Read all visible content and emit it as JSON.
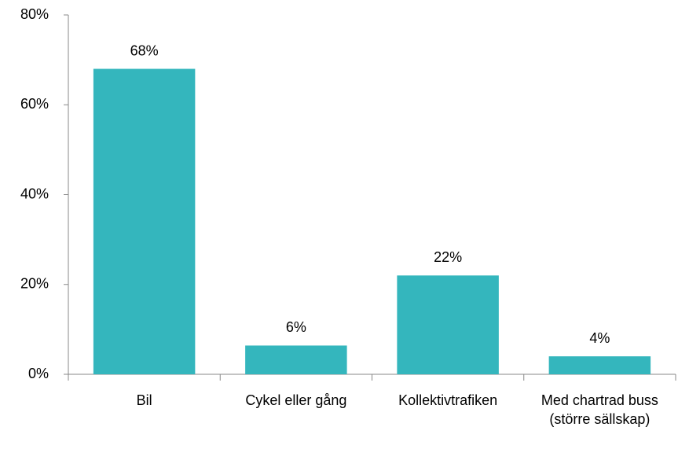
{
  "chart_data": {
    "type": "bar",
    "categories": [
      "Bil",
      "Cykel eller gång",
      "Kollektivtrafiken",
      "Med chartrad buss (större sällskap)"
    ],
    "values": [
      68,
      6.4,
      22,
      4
    ],
    "value_labels": [
      "68%",
      "6%",
      "22%",
      "4%"
    ],
    "color": "#34b6bd",
    "ylim": [
      0,
      80
    ],
    "yticks": [
      {
        "value": 0,
        "label": "0%"
      },
      {
        "value": 20,
        "label": "20%"
      },
      {
        "value": 40,
        "label": "40%"
      },
      {
        "value": 60,
        "label": "60%"
      },
      {
        "value": 80,
        "label": "80%"
      }
    ],
    "grid": false
  }
}
